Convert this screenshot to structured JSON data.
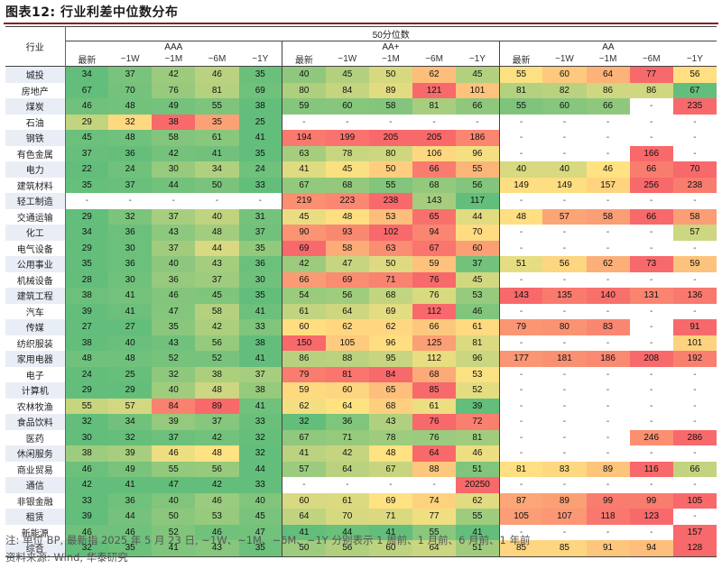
{
  "title": "图表12:  行业利差中位数分布",
  "header": {
    "corner": "行业",
    "top": "50分位数",
    "groups": [
      "AAA",
      "AA+",
      "AA"
    ],
    "periods": [
      "最新",
      "~1W",
      "~1M",
      "~6M",
      "~1Y"
    ]
  },
  "rows": [
    {
      "name": "城投",
      "v": [
        "34",
        "37",
        "42",
        "46",
        "35",
        "40",
        "45",
        "50",
        "62",
        "45",
        "55",
        "60",
        "64",
        "77",
        "56"
      ]
    },
    {
      "name": "房地产",
      "v": [
        "67",
        "70",
        "76",
        "81",
        "69",
        "80",
        "84",
        "89",
        "121",
        "101",
        "81",
        "82",
        "86",
        "86",
        "67"
      ]
    },
    {
      "name": "煤炭",
      "v": [
        "46",
        "48",
        "49",
        "55",
        "38",
        "59",
        "60",
        "58",
        "81",
        "66",
        "55",
        "60",
        "66",
        "-",
        "235"
      ]
    },
    {
      "name": "石油",
      "v": [
        "29",
        "32",
        "38",
        "35",
        "25",
        "-",
        "-",
        "-",
        "-",
        "-",
        "-",
        "-",
        "-",
        "-",
        "-"
      ]
    },
    {
      "name": "钢铁",
      "v": [
        "45",
        "48",
        "58",
        "61",
        "41",
        "194",
        "199",
        "205",
        "205",
        "186",
        "-",
        "-",
        "-",
        "-",
        "-"
      ]
    },
    {
      "name": "有色金属",
      "v": [
        "37",
        "36",
        "42",
        "41",
        "35",
        "63",
        "78",
        "80",
        "106",
        "96",
        "-",
        "-",
        "-",
        "166",
        "-"
      ]
    },
    {
      "name": "电力",
      "v": [
        "22",
        "24",
        "30",
        "34",
        "24",
        "41",
        "45",
        "50",
        "66",
        "55",
        "40",
        "40",
        "46",
        "66",
        "70"
      ]
    },
    {
      "name": "建筑材料",
      "v": [
        "35",
        "37",
        "44",
        "50",
        "33",
        "67",
        "68",
        "55",
        "68",
        "56",
        "149",
        "149",
        "157",
        "256",
        "238"
      ]
    },
    {
      "name": "轻工制造",
      "v": [
        "-",
        "-",
        "-",
        "-",
        "-",
        "219",
        "223",
        "238",
        "143",
        "117",
        "-",
        "-",
        "-",
        "-",
        "-"
      ]
    },
    {
      "name": "交通运输",
      "v": [
        "29",
        "32",
        "37",
        "40",
        "31",
        "45",
        "48",
        "53",
        "65",
        "44",
        "48",
        "57",
        "58",
        "66",
        "58"
      ]
    },
    {
      "name": "化工",
      "v": [
        "34",
        "36",
        "43",
        "48",
        "37",
        "90",
        "93",
        "102",
        "94",
        "70",
        "-",
        "-",
        "-",
        "-",
        "57"
      ]
    },
    {
      "name": "电气设备",
      "v": [
        "29",
        "30",
        "37",
        "44",
        "35",
        "69",
        "58",
        "63",
        "67",
        "60",
        "-",
        "-",
        "-",
        "-",
        "-"
      ]
    },
    {
      "name": "公用事业",
      "v": [
        "35",
        "36",
        "40",
        "43",
        "36",
        "42",
        "47",
        "50",
        "59",
        "37",
        "51",
        "56",
        "62",
        "73",
        "59"
      ]
    },
    {
      "name": "机械设备",
      "v": [
        "28",
        "30",
        "36",
        "37",
        "30",
        "66",
        "69",
        "71",
        "76",
        "45",
        "-",
        "-",
        "-",
        "-",
        "-"
      ]
    },
    {
      "name": "建筑工程",
      "v": [
        "38",
        "41",
        "46",
        "45",
        "35",
        "54",
        "56",
        "68",
        "76",
        "53",
        "143",
        "135",
        "140",
        "131",
        "136"
      ]
    },
    {
      "name": "汽车",
      "v": [
        "39",
        "41",
        "47",
        "58",
        "41",
        "61",
        "64",
        "69",
        "112",
        "46",
        "-",
        "-",
        "-",
        "-",
        "-"
      ]
    },
    {
      "name": "传媒",
      "v": [
        "27",
        "27",
        "35",
        "42",
        "33",
        "60",
        "62",
        "62",
        "66",
        "61",
        "79",
        "80",
        "83",
        "-",
        "91"
      ]
    },
    {
      "name": "纺织服装",
      "v": [
        "38",
        "40",
        "43",
        "56",
        "38",
        "150",
        "105",
        "96",
        "125",
        "81",
        "-",
        "-",
        "-",
        "-",
        "101"
      ]
    },
    {
      "name": "家用电器",
      "v": [
        "48",
        "48",
        "52",
        "52",
        "41",
        "86",
        "88",
        "95",
        "112",
        "96",
        "177",
        "181",
        "186",
        "208",
        "192"
      ]
    },
    {
      "name": "电子",
      "v": [
        "24",
        "25",
        "32",
        "38",
        "37",
        "79",
        "81",
        "84",
        "68",
        "53",
        "-",
        "-",
        "-",
        "-",
        "-"
      ]
    },
    {
      "name": "计算机",
      "v": [
        "29",
        "29",
        "40",
        "48",
        "38",
        "59",
        "60",
        "65",
        "85",
        "52",
        "-",
        "-",
        "-",
        "-",
        "-"
      ]
    },
    {
      "name": "农林牧渔",
      "v": [
        "55",
        "57",
        "84",
        "89",
        "41",
        "62",
        "64",
        "68",
        "61",
        "39",
        "-",
        "-",
        "-",
        "-",
        "-"
      ]
    },
    {
      "name": "食品饮料",
      "v": [
        "32",
        "34",
        "39",
        "37",
        "33",
        "32",
        "36",
        "43",
        "76",
        "72",
        "-",
        "-",
        "-",
        "-",
        "-"
      ]
    },
    {
      "name": "医药",
      "v": [
        "30",
        "32",
        "37",
        "42",
        "32",
        "67",
        "71",
        "78",
        "76",
        "81",
        "-",
        "-",
        "-",
        "246",
        "286"
      ]
    },
    {
      "name": "休闲服务",
      "v": [
        "38",
        "39",
        "46",
        "48",
        "32",
        "41",
        "42",
        "48",
        "64",
        "46",
        "-",
        "-",
        "-",
        "-",
        "-"
      ]
    },
    {
      "name": "商业贸易",
      "v": [
        "46",
        "49",
        "55",
        "56",
        "44",
        "57",
        "64",
        "67",
        "88",
        "51",
        "81",
        "83",
        "89",
        "116",
        "66"
      ]
    },
    {
      "name": "通信",
      "v": [
        "42",
        "41",
        "47",
        "42",
        "33",
        "-",
        "-",
        "-",
        "-",
        "20250",
        "-",
        "-",
        "-",
        "-",
        "-"
      ]
    },
    {
      "name": "非银金融",
      "v": [
        "33",
        "36",
        "40",
        "46",
        "40",
        "60",
        "61",
        "69",
        "74",
        "62",
        "87",
        "89",
        "99",
        "99",
        "105"
      ]
    },
    {
      "name": "租赁",
      "v": [
        "39",
        "44",
        "50",
        "53",
        "45",
        "64",
        "70",
        "71",
        "77",
        "55",
        "105",
        "107",
        "118",
        "123",
        "-"
      ]
    },
    {
      "name": "新能源",
      "v": [
        "46",
        "46",
        "52",
        "46",
        "47",
        "41",
        "44",
        "41",
        "55",
        "41",
        "-",
        "-",
        "-",
        "-",
        "157"
      ]
    },
    {
      "name": "综合",
      "v": [
        "32",
        "35",
        "41",
        "43",
        "35",
        "50",
        "56",
        "60",
        "64",
        "51",
        "85",
        "85",
        "91",
        "94",
        "128"
      ]
    }
  ],
  "footer": {
    "note": "注: 单位 BP, 最新指 2025 年 5 月 23 日, ~1W、~1M、~6M、~1Y 分别表示 1 周前、1 月前、6 月前、1 年前",
    "source": "资料来源: Wind, 华泰研究"
  }
}
